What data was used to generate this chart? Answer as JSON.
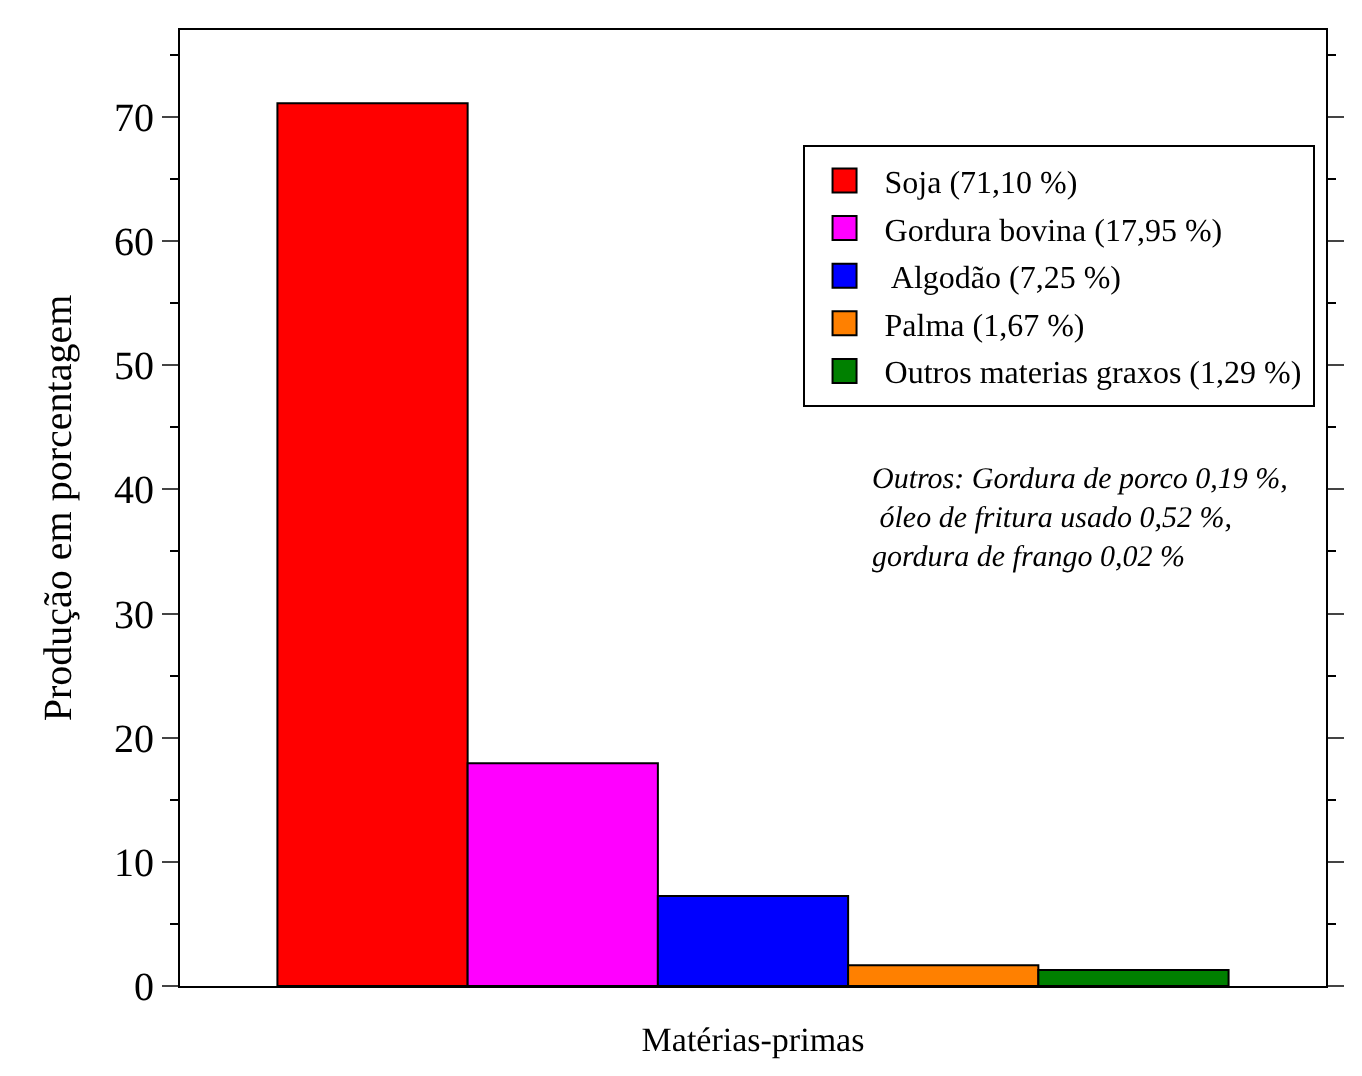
{
  "chart_data": {
    "type": "bar",
    "xlabel": "Matérias-primas",
    "ylabel": "Produção em porcentagem",
    "categories": [
      null
    ],
    "series": [
      {
        "name": "Soja (71,10 %)",
        "color": "#ff0000",
        "values": [
          71.1
        ]
      },
      {
        "name": "Gordura bovina (17,95 %)",
        "color": "#ff00ff",
        "values": [
          17.95
        ]
      },
      {
        "name": " Algodão (7,25 %)",
        "color": "#0000ff",
        "values": [
          7.25
        ]
      },
      {
        "name": "Palma (1,67 %)",
        "color": "#ff8000",
        "values": [
          1.67
        ]
      },
      {
        "name": "Outros materias graxos (1,29 %)",
        "color": "#008000",
        "values": [
          1.29
        ]
      }
    ],
    "ylim": [
      0,
      77
    ],
    "yticks": [
      0,
      10,
      20,
      30,
      40,
      50,
      60,
      70
    ],
    "annotations": [
      "Outros: Gordura de porco 0,19 %,\n óleo de fritura usado 0,52 %,\ngordura de frango 0,02 %"
    ],
    "legend": "top right",
    "tick_labels": "y"
  }
}
